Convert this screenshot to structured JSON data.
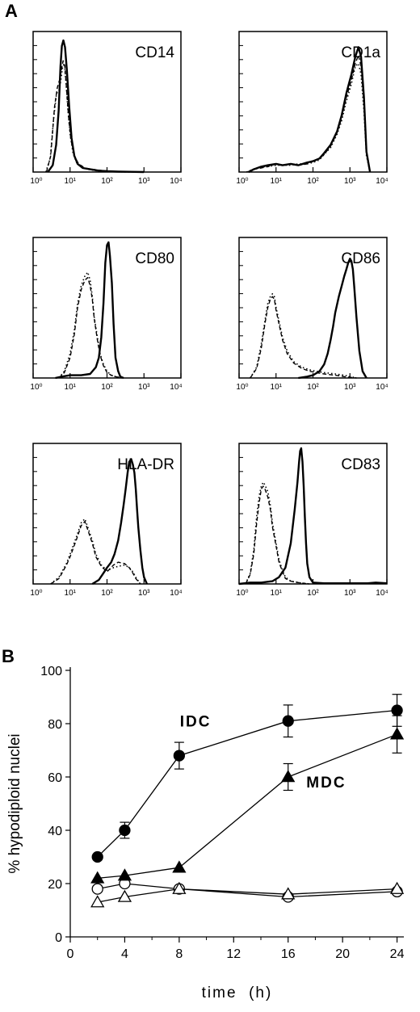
{
  "panel_a": {
    "letter": "A"
  },
  "panel_b": {
    "letter": "B"
  },
  "chart_data": [
    {
      "type": "line",
      "label": "CD14",
      "xscale": "log",
      "xlim": [
        1,
        10000
      ],
      "x_ticks": [
        "10⁰",
        "10¹",
        "10²",
        "10³",
        "10⁴"
      ],
      "series": [
        {
          "style": "solid",
          "x": [
            2.5,
            3.4,
            4.2,
            4.9,
            5.5,
            6.0,
            6.6,
            7.3,
            8.2,
            9.5,
            11,
            13,
            16,
            22,
            35,
            60,
            100,
            200,
            400,
            1000
          ],
          "y": [
            0,
            5,
            20,
            45,
            78,
            93,
            97,
            92,
            75,
            48,
            25,
            12,
            6,
            3,
            2,
            1,
            0.6,
            0.3,
            0.2,
            0
          ]
        },
        {
          "style": "dotted",
          "x": [
            2.2,
            2.9,
            3.6,
            4.3,
            5.0,
            5.6,
            6.3,
            7.0,
            7.8,
            8.8,
            10,
            12,
            15,
            20,
            30,
            50,
            100,
            200,
            500
          ],
          "y": [
            0,
            10,
            40,
            58,
            60,
            67,
            78,
            80,
            65,
            45,
            28,
            14,
            7,
            4,
            2,
            1,
            0.5,
            0.2,
            0
          ]
        },
        {
          "style": "dashed",
          "x": [
            2.3,
            3.0,
            3.8,
            4.5,
            5.2,
            5.8,
            6.5,
            7.2,
            8.0,
            9.0,
            10.5,
            13,
            17,
            25,
            40,
            80,
            150,
            300
          ],
          "y": [
            0,
            12,
            48,
            62,
            68,
            75,
            82,
            78,
            62,
            42,
            24,
            12,
            6,
            3,
            2,
            1,
            0.4,
            0
          ]
        }
      ]
    },
    {
      "type": "line",
      "label": "CD1a",
      "xscale": "log",
      "xlim": [
        1,
        10000
      ],
      "x_ticks": [
        "10⁰",
        "10¹",
        "10²",
        "10³",
        "10⁴"
      ],
      "series": [
        {
          "style": "solid",
          "x": [
            1.8,
            2.5,
            4,
            6,
            10,
            15,
            25,
            40,
            70,
            100,
            150,
            200,
            300,
            450,
            600,
            800,
            1100,
            1400,
            1700,
            2000,
            2400,
            2800,
            3500
          ],
          "y": [
            0,
            2,
            4,
            5,
            6,
            5,
            6,
            5,
            7,
            8,
            10,
            14,
            20,
            30,
            42,
            58,
            72,
            85,
            92,
            85,
            55,
            15,
            0
          ]
        },
        {
          "style": "dotted",
          "x": [
            1.6,
            2.4,
            4,
            6,
            10,
            15,
            25,
            40,
            70,
            100,
            150,
            200,
            300,
            450,
            600,
            800,
            1100,
            1400,
            1700,
            2000,
            2400,
            2800,
            3500
          ],
          "y": [
            0,
            2,
            4,
            4,
            5,
            5,
            5,
            6,
            6,
            7,
            9,
            13,
            18,
            28,
            38,
            52,
            65,
            78,
            80,
            72,
            45,
            12,
            0
          ]
        },
        {
          "style": "dashed",
          "x": [
            1.7,
            2.5,
            4,
            6,
            10,
            15,
            25,
            40,
            70,
            100,
            150,
            200,
            300,
            450,
            600,
            800,
            1100,
            1400,
            1700,
            2000,
            2400,
            2800,
            3500
          ],
          "y": [
            0,
            2,
            3,
            4,
            6,
            5,
            6,
            5,
            6,
            8,
            10,
            13,
            19,
            29,
            40,
            55,
            68,
            80,
            86,
            78,
            50,
            14,
            0
          ]
        }
      ]
    },
    {
      "type": "line",
      "label": "CD80",
      "xscale": "log",
      "xlim": [
        1,
        10000
      ],
      "x_ticks": [
        "10⁰",
        "10¹",
        "10²",
        "10³",
        "10⁴"
      ],
      "series": [
        {
          "style": "solid",
          "x": [
            4,
            6,
            10,
            20,
            35,
            50,
            60,
            70,
            80,
            90,
            100,
            110,
            120,
            135,
            150,
            170,
            200,
            230,
            280
          ],
          "y": [
            0,
            1,
            2,
            2,
            3,
            8,
            15,
            30,
            55,
            85,
            98,
            100,
            90,
            70,
            40,
            15,
            5,
            1,
            0
          ]
        },
        {
          "style": "dotted",
          "x": [
            5,
            7,
            10,
            13,
            16,
            20,
            25,
            30,
            35,
            40,
            45,
            55,
            65,
            80,
            100,
            130,
            170,
            250
          ],
          "y": [
            0,
            5,
            18,
            35,
            55,
            68,
            75,
            78,
            72,
            60,
            45,
            30,
            18,
            10,
            5,
            2,
            1,
            0
          ]
        },
        {
          "style": "dashed",
          "x": [
            5,
            7,
            10,
            13,
            16,
            20,
            25,
            30,
            35,
            40,
            45,
            55,
            65,
            80,
            100,
            130,
            170,
            250
          ],
          "y": [
            0,
            4,
            15,
            32,
            52,
            65,
            72,
            74,
            68,
            58,
            44,
            28,
            17,
            9,
            4,
            2,
            1,
            0
          ]
        }
      ]
    },
    {
      "type": "line",
      "label": "CD86",
      "xscale": "log",
      "xlim": [
        1,
        10000
      ],
      "x_ticks": [
        "10⁰",
        "10¹",
        "10²",
        "10³",
        "10⁴"
      ],
      "series": [
        {
          "style": "solid",
          "x": [
            40,
            70,
            100,
            150,
            200,
            250,
            300,
            350,
            400,
            500,
            600,
            700,
            800,
            900,
            1000,
            1100,
            1200,
            1300,
            1500,
            1800,
            2200,
            2800
          ],
          "y": [
            0,
            1,
            2,
            5,
            10,
            18,
            28,
            38,
            48,
            60,
            68,
            75,
            80,
            85,
            88,
            86,
            80,
            68,
            45,
            20,
            5,
            0
          ]
        },
        {
          "style": "dotted",
          "x": [
            2,
            3,
            4,
            5,
            6,
            7,
            8,
            9,
            10,
            12,
            15,
            20,
            30,
            50,
            80,
            120,
            200,
            400,
            700,
            1500
          ],
          "y": [
            0,
            8,
            25,
            42,
            55,
            60,
            62,
            60,
            52,
            42,
            30,
            20,
            12,
            8,
            6,
            5,
            4,
            3,
            2,
            0
          ]
        },
        {
          "style": "dashed",
          "x": [
            2,
            3,
            4,
            5,
            6,
            7,
            8,
            9,
            10,
            12,
            15,
            20,
            30,
            50,
            80,
            120,
            200,
            400,
            700,
            1500
          ],
          "y": [
            0,
            7,
            22,
            40,
            52,
            58,
            60,
            58,
            50,
            40,
            28,
            18,
            11,
            7,
            5,
            4,
            3,
            2,
            1,
            0
          ]
        }
      ]
    },
    {
      "type": "line",
      "label": "HLA-DR",
      "xscale": "log",
      "xlim": [
        1,
        10000
      ],
      "x_ticks": [
        "10⁰",
        "10¹",
        "10²",
        "10³",
        "10⁴"
      ],
      "series": [
        {
          "style": "solid",
          "x": [
            40,
            60,
            80,
            100,
            130,
            160,
            200,
            240,
            280,
            320,
            360,
            400,
            450,
            500,
            550,
            600,
            650,
            700,
            800,
            900,
            1000,
            1200
          ],
          "y": [
            0,
            3,
            8,
            12,
            16,
            22,
            32,
            45,
            58,
            70,
            82,
            90,
            92,
            88,
            82,
            70,
            55,
            42,
            25,
            12,
            5,
            0
          ]
        },
        {
          "style": "dotted",
          "x": [
            3,
            5,
            8,
            10,
            15,
            20,
            25,
            30,
            40,
            50,
            70,
            100,
            150,
            200,
            300,
            400,
            500,
            600,
            800
          ],
          "y": [
            0,
            5,
            15,
            22,
            35,
            45,
            48,
            42,
            32,
            22,
            14,
            10,
            12,
            13,
            14,
            12,
            9,
            5,
            0
          ]
        },
        {
          "style": "dashed",
          "x": [
            3,
            5,
            8,
            10,
            15,
            20,
            25,
            30,
            40,
            50,
            70,
            100,
            150,
            200,
            300,
            400,
            500,
            600,
            800
          ],
          "y": [
            0,
            4,
            14,
            20,
            33,
            43,
            46,
            40,
            30,
            20,
            13,
            9,
            14,
            16,
            15,
            12,
            8,
            4,
            0
          ]
        }
      ]
    },
    {
      "type": "line",
      "label": "CD83",
      "xscale": "log",
      "xlim": [
        1,
        10000
      ],
      "x_ticks": [
        "10⁰",
        "10¹",
        "10²",
        "10³",
        "10⁴"
      ],
      "series": [
        {
          "style": "solid",
          "x": [
            1,
            2,
            4,
            8,
            12,
            18,
            25,
            32,
            38,
            42,
            45,
            48,
            52,
            56,
            60,
            65,
            70,
            80,
            100,
            200,
            500,
            1000,
            3000,
            5000,
            10000
          ],
          "y": [
            0,
            1,
            1,
            2,
            5,
            12,
            30,
            55,
            75,
            90,
            98,
            100,
            90,
            72,
            50,
            30,
            15,
            5,
            1,
            0.5,
            0.5,
            0.5,
            0.5,
            1,
            0.5
          ]
        },
        {
          "style": "dotted",
          "x": [
            1.5,
            2,
            2.5,
            3,
            3.5,
            4,
            4.5,
            5,
            6,
            7,
            8,
            10,
            12,
            15,
            18,
            25,
            40,
            80
          ],
          "y": [
            0,
            8,
            25,
            50,
            65,
            72,
            75,
            73,
            68,
            58,
            45,
            30,
            18,
            10,
            5,
            2,
            1,
            0
          ]
        },
        {
          "style": "dashed",
          "x": [
            1.5,
            2,
            2.5,
            3,
            3.5,
            4,
            4.5,
            5,
            6,
            7,
            8,
            10,
            12,
            15,
            18,
            25,
            40,
            80
          ],
          "y": [
            0,
            7,
            22,
            45,
            60,
            70,
            72,
            70,
            64,
            55,
            42,
            28,
            16,
            9,
            4,
            2,
            1,
            0
          ]
        }
      ]
    },
    {
      "type": "line",
      "xlabel": "time  (h)",
      "ylabel": "% hypodiploid nuclei",
      "xlim": [
        0,
        24.5
      ],
      "ylim": [
        0,
        100
      ],
      "x_ticks": [
        0,
        4,
        8,
        12,
        16,
        20,
        24
      ],
      "y_ticks": [
        0,
        20,
        40,
        60,
        80,
        100
      ],
      "annotations": [
        {
          "text": "IDC",
          "x": 9.2,
          "y": 79
        },
        {
          "text": "MDC",
          "x": 18.8,
          "y": 56
        }
      ],
      "series": [
        {
          "name": "IDC",
          "marker": "filled-circle",
          "x": [
            2,
            4,
            8,
            16,
            24
          ],
          "y": [
            30,
            40,
            68,
            81,
            85
          ],
          "err": [
            0,
            3,
            5,
            6,
            6
          ]
        },
        {
          "name": "MDC",
          "marker": "filled-triangle",
          "x": [
            2,
            4,
            8,
            16,
            24
          ],
          "y": [
            22,
            23,
            26,
            60,
            76
          ],
          "err": [
            0,
            0,
            0,
            5,
            7
          ]
        },
        {
          "marker": "open-circle",
          "x": [
            2,
            4,
            8,
            16,
            24
          ],
          "y": [
            18,
            20,
            18,
            15,
            17
          ],
          "err": [
            0,
            0,
            0,
            0,
            0
          ]
        },
        {
          "marker": "open-triangle",
          "x": [
            2,
            4,
            8,
            16,
            24
          ],
          "y": [
            13,
            15,
            18,
            16,
            18
          ],
          "err": [
            0,
            0,
            0,
            0,
            0
          ]
        }
      ]
    }
  ]
}
